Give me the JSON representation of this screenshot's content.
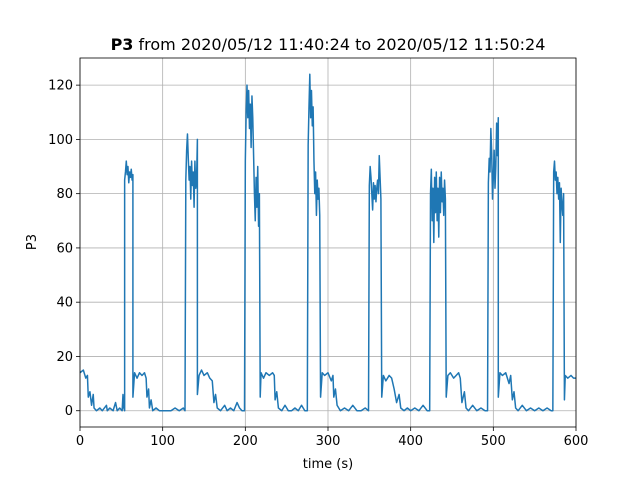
{
  "chart_data": {
    "type": "line",
    "title_bold": "P3",
    "title_rest": " from 2020/05/12 11:40:24 to 2020/05/12 11:50:24",
    "xlabel": "time (s)",
    "ylabel": "P3",
    "xlim": [
      0,
      600
    ],
    "ylim": [
      -6,
      130
    ],
    "xticks": [
      0,
      100,
      200,
      300,
      400,
      500,
      600
    ],
    "yticks": [
      0,
      20,
      40,
      60,
      80,
      100,
      120
    ],
    "grid": true,
    "color": "#1f77b4",
    "series": [
      {
        "values": [
          [
            0,
            14
          ],
          [
            4,
            15
          ],
          [
            7,
            12
          ],
          [
            9,
            13
          ],
          [
            10,
            5
          ],
          [
            12,
            7
          ],
          [
            14,
            2
          ],
          [
            16,
            6
          ],
          [
            17,
            1
          ],
          [
            20,
            0
          ],
          [
            24,
            1
          ],
          [
            27,
            0
          ],
          [
            32,
            2
          ],
          [
            33,
            0
          ],
          [
            36,
            1
          ],
          [
            40,
            0
          ],
          [
            43,
            3
          ],
          [
            45,
            0
          ],
          [
            48,
            1
          ],
          [
            51,
            0
          ],
          [
            52,
            6
          ],
          [
            53,
            1
          ],
          [
            54,
            0
          ],
          [
            54,
            85
          ],
          [
            55,
            88
          ],
          [
            56,
            92
          ],
          [
            57,
            87
          ],
          [
            58,
            90
          ],
          [
            59,
            84
          ],
          [
            60,
            88
          ],
          [
            61,
            86
          ],
          [
            62,
            89
          ],
          [
            63,
            85
          ],
          [
            64,
            87
          ],
          [
            64,
            5
          ],
          [
            66,
            14
          ],
          [
            69,
            12
          ],
          [
            72,
            14
          ],
          [
            75,
            13
          ],
          [
            78,
            14
          ],
          [
            80,
            12
          ],
          [
            81,
            5
          ],
          [
            83,
            8
          ],
          [
            84,
            1
          ],
          [
            86,
            4
          ],
          [
            88,
            0
          ],
          [
            92,
            1
          ],
          [
            96,
            0
          ],
          [
            100,
            0
          ],
          [
            110,
            0
          ],
          [
            115,
            1
          ],
          [
            120,
            0
          ],
          [
            125,
            1
          ],
          [
            127,
            0
          ],
          [
            128,
            85
          ],
          [
            129,
            96
          ],
          [
            130,
            102
          ],
          [
            131,
            93
          ],
          [
            132,
            85
          ],
          [
            133,
            90
          ],
          [
            134,
            78
          ],
          [
            135,
            92
          ],
          [
            136,
            83
          ],
          [
            137,
            88
          ],
          [
            138,
            75
          ],
          [
            139,
            92
          ],
          [
            140,
            82
          ],
          [
            141,
            85
          ],
          [
            142,
            100
          ],
          [
            142,
            6
          ],
          [
            144,
            13
          ],
          [
            147,
            15
          ],
          [
            150,
            13
          ],
          [
            154,
            14
          ],
          [
            157,
            12
          ],
          [
            160,
            11
          ],
          [
            162,
            3
          ],
          [
            164,
            6
          ],
          [
            166,
            1
          ],
          [
            170,
            0
          ],
          [
            175,
            2
          ],
          [
            178,
            0
          ],
          [
            182,
            1
          ],
          [
            186,
            0
          ],
          [
            190,
            3
          ],
          [
            193,
            1
          ],
          [
            196,
            0
          ],
          [
            199,
            0
          ],
          [
            200,
            92
          ],
          [
            201,
            110
          ],
          [
            202,
            120
          ],
          [
            203,
            108
          ],
          [
            204,
            118
          ],
          [
            205,
            104
          ],
          [
            206,
            113
          ],
          [
            207,
            97
          ],
          [
            208,
            116
          ],
          [
            209,
            108
          ],
          [
            210,
            94
          ],
          [
            211,
            80
          ],
          [
            212,
            70
          ],
          [
            213,
            86
          ],
          [
            214,
            75
          ],
          [
            215,
            90
          ],
          [
            216,
            68
          ],
          [
            217,
            80
          ],
          [
            218,
            5
          ],
          [
            219,
            14
          ],
          [
            222,
            12
          ],
          [
            225,
            14
          ],
          [
            229,
            13
          ],
          [
            233,
            14
          ],
          [
            235,
            13
          ],
          [
            236,
            4
          ],
          [
            238,
            7
          ],
          [
            240,
            1
          ],
          [
            244,
            0
          ],
          [
            248,
            2
          ],
          [
            252,
            0
          ],
          [
            256,
            0
          ],
          [
            260,
            1
          ],
          [
            264,
            0
          ],
          [
            268,
            2
          ],
          [
            272,
            0
          ],
          [
            275,
            0
          ],
          [
            276,
            98
          ],
          [
            277,
            112
          ],
          [
            278,
            124
          ],
          [
            279,
            108
          ],
          [
            280,
            118
          ],
          [
            281,
            105
          ],
          [
            282,
            112
          ],
          [
            283,
            92
          ],
          [
            284,
            80
          ],
          [
            285,
            88
          ],
          [
            286,
            72
          ],
          [
            287,
            85
          ],
          [
            288,
            78
          ],
          [
            289,
            82
          ],
          [
            290,
            72
          ],
          [
            291,
            5
          ],
          [
            293,
            14
          ],
          [
            296,
            13
          ],
          [
            300,
            14
          ],
          [
            304,
            11
          ],
          [
            306,
            13
          ],
          [
            307,
            5
          ],
          [
            309,
            8
          ],
          [
            311,
            2
          ],
          [
            315,
            0
          ],
          [
            320,
            1
          ],
          [
            325,
            0
          ],
          [
            330,
            2
          ],
          [
            335,
            0
          ],
          [
            340,
            0
          ],
          [
            345,
            1
          ],
          [
            349,
            0
          ],
          [
            350,
            83
          ],
          [
            351,
            90
          ],
          [
            352,
            86
          ],
          [
            353,
            80
          ],
          [
            354,
            74
          ],
          [
            355,
            84
          ],
          [
            356,
            78
          ],
          [
            357,
            83
          ],
          [
            358,
            77
          ],
          [
            359,
            82
          ],
          [
            360,
            85
          ],
          [
            361,
            80
          ],
          [
            362,
            94
          ],
          [
            363,
            86
          ],
          [
            364,
            78
          ],
          [
            365,
            5
          ],
          [
            367,
            13
          ],
          [
            370,
            11
          ],
          [
            374,
            13
          ],
          [
            377,
            12
          ],
          [
            380,
            8
          ],
          [
            383,
            3
          ],
          [
            386,
            6
          ],
          [
            388,
            1
          ],
          [
            392,
            0
          ],
          [
            396,
            1
          ],
          [
            400,
            0
          ],
          [
            405,
            1
          ],
          [
            410,
            0
          ],
          [
            415,
            2
          ],
          [
            420,
            0
          ],
          [
            423,
            0
          ],
          [
            424,
            80
          ],
          [
            425,
            89
          ],
          [
            426,
            70
          ],
          [
            427,
            82
          ],
          [
            428,
            62
          ],
          [
            429,
            86
          ],
          [
            430,
            73
          ],
          [
            431,
            88
          ],
          [
            432,
            70
          ],
          [
            433,
            82
          ],
          [
            434,
            64
          ],
          [
            435,
            86
          ],
          [
            436,
            73
          ],
          [
            437,
            88
          ],
          [
            438,
            77
          ],
          [
            439,
            82
          ],
          [
            440,
            72
          ],
          [
            441,
            85
          ],
          [
            442,
            78
          ],
          [
            443,
            5
          ],
          [
            445,
            13
          ],
          [
            448,
            14
          ],
          [
            452,
            12
          ],
          [
            455,
            13
          ],
          [
            458,
            14
          ],
          [
            460,
            12
          ],
          [
            462,
            3
          ],
          [
            465,
            7
          ],
          [
            467,
            1
          ],
          [
            470,
            0
          ],
          [
            475,
            2
          ],
          [
            480,
            0
          ],
          [
            485,
            1
          ],
          [
            490,
            0
          ],
          [
            493,
            0
          ],
          [
            494,
            84
          ],
          [
            495,
            93
          ],
          [
            496,
            88
          ],
          [
            497,
            104
          ],
          [
            498,
            95
          ],
          [
            499,
            78
          ],
          [
            500,
            86
          ],
          [
            501,
            96
          ],
          [
            502,
            82
          ],
          [
            503,
            90
          ],
          [
            504,
            106
          ],
          [
            505,
            94
          ],
          [
            506,
            108
          ],
          [
            506,
            5
          ],
          [
            508,
            14
          ],
          [
            511,
            13
          ],
          [
            515,
            14
          ],
          [
            519,
            10
          ],
          [
            521,
            13
          ],
          [
            523,
            4
          ],
          [
            525,
            7
          ],
          [
            527,
            1
          ],
          [
            530,
            0
          ],
          [
            535,
            2
          ],
          [
            540,
            0
          ],
          [
            545,
            1
          ],
          [
            550,
            0
          ],
          [
            555,
            1
          ],
          [
            560,
            0
          ],
          [
            565,
            1
          ],
          [
            570,
            0
          ],
          [
            572,
            0
          ],
          [
            573,
            88
          ],
          [
            574,
            92
          ],
          [
            575,
            85
          ],
          [
            576,
            88
          ],
          [
            577,
            80
          ],
          [
            578,
            86
          ],
          [
            579,
            78
          ],
          [
            580,
            84
          ],
          [
            581,
            62
          ],
          [
            582,
            82
          ],
          [
            583,
            76
          ],
          [
            584,
            72
          ],
          [
            585,
            80
          ],
          [
            586,
            4
          ],
          [
            587,
            13
          ],
          [
            590,
            12
          ],
          [
            594,
            13
          ],
          [
            597,
            12
          ],
          [
            600,
            12
          ]
        ]
      }
    ]
  }
}
